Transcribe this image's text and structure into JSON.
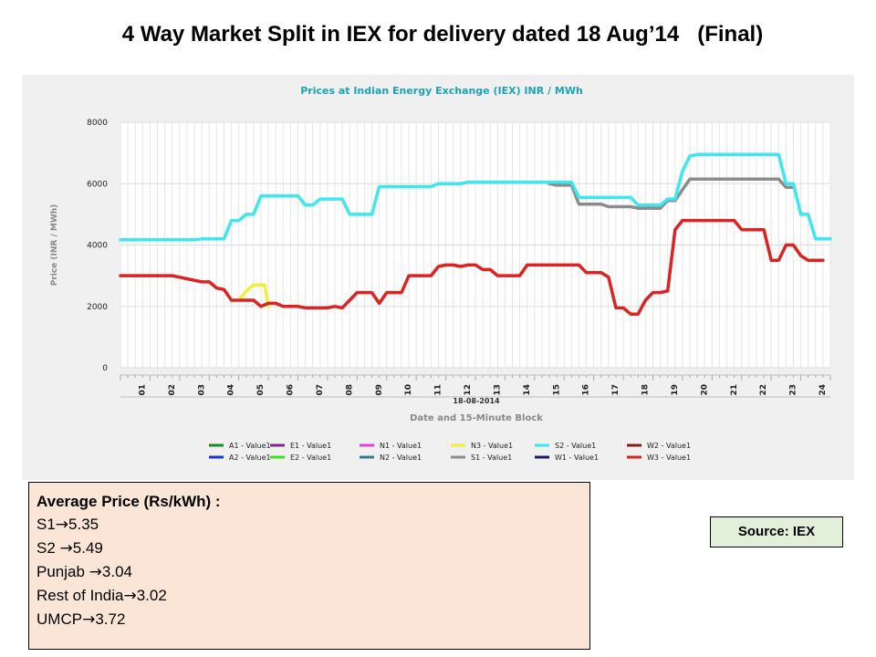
{
  "slide": {
    "title": "4 Way Market Split in IEX for delivery dated 18 Aug’14   (Final)"
  },
  "average_price": {
    "heading": "Average Price (Rs/kWh) :",
    "arrow": "→",
    "items": [
      {
        "label": "S1",
        "value": "5.35"
      },
      {
        "label": "S2 ",
        "value": "5.49"
      },
      {
        "label": "Punjab ",
        "value": "3.04"
      },
      {
        "label": "Rest of  India",
        "value": "3.02"
      },
      {
        "label": "UMCP",
        "value": "3.72"
      }
    ]
  },
  "source": {
    "label": "Source: IEX"
  },
  "chart_data": {
    "type": "line",
    "title": "Prices at Indian Energy Exchange (IEX) INR / MWh",
    "xlabel": "Date and 15-Minute Block",
    "ylabel": "Price (INR / MWh)",
    "date_label": "18-08-2014",
    "ylim": [
      0,
      8000
    ],
    "yticks": [
      0,
      2000,
      4000,
      6000,
      8000
    ],
    "xlim": [
      0,
      96
    ],
    "xticks": [
      "01",
      "02",
      "03",
      "04",
      "05",
      "06",
      "07",
      "08",
      "09",
      "10",
      "11",
      "12",
      "13",
      "14",
      "15",
      "16",
      "17",
      "18",
      "19",
      "20",
      "21",
      "22",
      "23",
      "24"
    ],
    "grid": true,
    "legend_position": "bottom",
    "colors": {
      "title": "#1aa3b8",
      "axis_label": "#888888",
      "tick_label": "#222222",
      "grid": "#e6e6e6",
      "plot_bg": "#ffffff",
      "panel_bg": "#f0f0f0"
    },
    "legend": [
      {
        "name": "A1 - Value1",
        "color": "#1a8a2e"
      },
      {
        "name": "E1 - Value1",
        "color": "#7b2c8c"
      },
      {
        "name": "N1 - Value1",
        "color": "#e040e0"
      },
      {
        "name": "N3 - Value1",
        "color": "#f2ee3c"
      },
      {
        "name": "S2 - Value1",
        "color": "#3ee6f0"
      },
      {
        "name": "W2 - Value1",
        "color": "#8b1a1a"
      },
      {
        "name": "A2 - Value1",
        "color": "#2233cc"
      },
      {
        "name": "E2 - Value1",
        "color": "#44dd22"
      },
      {
        "name": "N2 - Value1",
        "color": "#2f7f86"
      },
      {
        "name": "S1 - Value1",
        "color": "#8c8c8c"
      },
      {
        "name": "W1 - Value1",
        "color": "#1a1a66"
      },
      {
        "name": "W3 - Value1",
        "color": "#dd2222"
      }
    ],
    "series": [
      {
        "name": "N3 - Value1",
        "color": "#f2ee3c",
        "points": [
          [
            16,
            2200
          ],
          [
            17,
            2500
          ],
          [
            18,
            2700
          ],
          [
            19,
            2700
          ],
          [
            19.5,
            2700
          ],
          [
            20,
            2000
          ]
        ]
      },
      {
        "name": "S1 - Value1",
        "color": "#8c8c8c",
        "points": [
          [
            58,
            6000
          ],
          [
            59,
            5950
          ],
          [
            60,
            5950
          ],
          [
            61,
            5950
          ],
          [
            62,
            5330
          ],
          [
            63,
            5330
          ],
          [
            64,
            5330
          ],
          [
            65,
            5330
          ],
          [
            66,
            5250
          ],
          [
            67,
            5250
          ],
          [
            68,
            5250
          ],
          [
            69,
            5250
          ],
          [
            70,
            5200
          ],
          [
            71,
            5200
          ],
          [
            72,
            5200
          ],
          [
            73,
            5200
          ],
          [
            74,
            5450
          ],
          [
            75,
            5450
          ],
          [
            76,
            5800
          ],
          [
            77,
            6150
          ],
          [
            78,
            6150
          ],
          [
            79,
            6150
          ],
          [
            80,
            6150
          ],
          [
            81,
            6150
          ],
          [
            82,
            6150
          ],
          [
            83,
            6150
          ],
          [
            84,
            6150
          ],
          [
            85,
            6150
          ],
          [
            86,
            6150
          ],
          [
            87,
            6150
          ],
          [
            88,
            6150
          ],
          [
            89,
            6150
          ],
          [
            90,
            5880
          ],
          [
            91,
            5880
          ]
        ]
      },
      {
        "name": "S2 - Value1",
        "color": "#3ee6f0",
        "points": [
          [
            0,
            4170
          ],
          [
            1,
            4170
          ],
          [
            2,
            4170
          ],
          [
            3,
            4170
          ],
          [
            4,
            4170
          ],
          [
            5,
            4170
          ],
          [
            6,
            4170
          ],
          [
            7,
            4170
          ],
          [
            8,
            4170
          ],
          [
            9,
            4170
          ],
          [
            10,
            4170
          ],
          [
            11,
            4200
          ],
          [
            12,
            4200
          ],
          [
            13,
            4200
          ],
          [
            14,
            4200
          ],
          [
            15,
            4800
          ],
          [
            16,
            4800
          ],
          [
            17,
            5000
          ],
          [
            18,
            5000
          ],
          [
            19,
            5600
          ],
          [
            20,
            5600
          ],
          [
            21,
            5600
          ],
          [
            22,
            5600
          ],
          [
            23,
            5600
          ],
          [
            24,
            5600
          ],
          [
            25,
            5300
          ],
          [
            26,
            5300
          ],
          [
            27,
            5500
          ],
          [
            28,
            5500
          ],
          [
            29,
            5500
          ],
          [
            30,
            5500
          ],
          [
            31,
            5000
          ],
          [
            32,
            5000
          ],
          [
            33,
            5000
          ],
          [
            34,
            5000
          ],
          [
            35,
            5900
          ],
          [
            36,
            5900
          ],
          [
            37,
            5900
          ],
          [
            38,
            5900
          ],
          [
            39,
            5900
          ],
          [
            40,
            5900
          ],
          [
            41,
            5900
          ],
          [
            42,
            5900
          ],
          [
            43,
            6000
          ],
          [
            44,
            6000
          ],
          [
            45,
            6000
          ],
          [
            46,
            6000
          ],
          [
            47,
            6050
          ],
          [
            48,
            6050
          ],
          [
            49,
            6050
          ],
          [
            50,
            6050
          ],
          [
            51,
            6050
          ],
          [
            52,
            6050
          ],
          [
            53,
            6050
          ],
          [
            54,
            6050
          ],
          [
            55,
            6050
          ],
          [
            56,
            6050
          ],
          [
            57,
            6050
          ],
          [
            58,
            6050
          ],
          [
            59,
            6050
          ],
          [
            60,
            6050
          ],
          [
            61,
            6050
          ],
          [
            62,
            5550
          ],
          [
            63,
            5550
          ],
          [
            64,
            5550
          ],
          [
            65,
            5550
          ],
          [
            66,
            5550
          ],
          [
            67,
            5550
          ],
          [
            68,
            5550
          ],
          [
            69,
            5550
          ],
          [
            70,
            5300
          ],
          [
            71,
            5300
          ],
          [
            72,
            5300
          ],
          [
            73,
            5300
          ],
          [
            74,
            5500
          ],
          [
            75,
            5500
          ],
          [
            76,
            6400
          ],
          [
            77,
            6900
          ],
          [
            78,
            6950
          ],
          [
            79,
            6950
          ],
          [
            80,
            6950
          ],
          [
            81,
            6950
          ],
          [
            82,
            6950
          ],
          [
            83,
            6950
          ],
          [
            84,
            6950
          ],
          [
            85,
            6950
          ],
          [
            86,
            6950
          ],
          [
            87,
            6950
          ],
          [
            88,
            6950
          ],
          [
            89,
            6950
          ],
          [
            90,
            6000
          ],
          [
            91,
            6000
          ],
          [
            92,
            5000
          ],
          [
            93,
            5000
          ],
          [
            94,
            4200
          ],
          [
            95,
            4200
          ],
          [
            96,
            4200
          ]
        ]
      },
      {
        "name": "W3 - Value1",
        "color": "#dd2222",
        "points": [
          [
            0,
            3000
          ],
          [
            1,
            3000
          ],
          [
            2,
            3000
          ],
          [
            3,
            3000
          ],
          [
            4,
            3000
          ],
          [
            5,
            3000
          ],
          [
            6,
            3000
          ],
          [
            7,
            3000
          ],
          [
            8,
            2950
          ],
          [
            9,
            2900
          ],
          [
            10,
            2850
          ],
          [
            11,
            2800
          ],
          [
            12,
            2800
          ],
          [
            13,
            2600
          ],
          [
            14,
            2550
          ],
          [
            15,
            2200
          ],
          [
            16,
            2200
          ],
          [
            17,
            2200
          ],
          [
            18,
            2200
          ],
          [
            19,
            2000
          ],
          [
            20,
            2100
          ],
          [
            21,
            2100
          ],
          [
            22,
            2000
          ],
          [
            23,
            2000
          ],
          [
            24,
            2000
          ],
          [
            25,
            1950
          ],
          [
            26,
            1950
          ],
          [
            27,
            1950
          ],
          [
            28,
            1950
          ],
          [
            29,
            2000
          ],
          [
            30,
            1950
          ],
          [
            31,
            2200
          ],
          [
            32,
            2450
          ],
          [
            33,
            2450
          ],
          [
            34,
            2450
          ],
          [
            35,
            2100
          ],
          [
            36,
            2450
          ],
          [
            37,
            2450
          ],
          [
            38,
            2450
          ],
          [
            39,
            3000
          ],
          [
            40,
            3000
          ],
          [
            41,
            3000
          ],
          [
            42,
            3000
          ],
          [
            43,
            3300
          ],
          [
            44,
            3350
          ],
          [
            45,
            3350
          ],
          [
            46,
            3300
          ],
          [
            47,
            3350
          ],
          [
            48,
            3350
          ],
          [
            49,
            3200
          ],
          [
            50,
            3200
          ],
          [
            51,
            3000
          ],
          [
            52,
            3000
          ],
          [
            53,
            3000
          ],
          [
            54,
            3000
          ],
          [
            55,
            3350
          ],
          [
            56,
            3350
          ],
          [
            57,
            3350
          ],
          [
            58,
            3350
          ],
          [
            59,
            3350
          ],
          [
            60,
            3350
          ],
          [
            61,
            3350
          ],
          [
            62,
            3350
          ],
          [
            63,
            3100
          ],
          [
            64,
            3100
          ],
          [
            65,
            3100
          ],
          [
            66,
            2950
          ],
          [
            67,
            1950
          ],
          [
            68,
            1950
          ],
          [
            69,
            1750
          ],
          [
            70,
            1750
          ],
          [
            71,
            2200
          ],
          [
            72,
            2450
          ],
          [
            73,
            2450
          ],
          [
            74,
            2500
          ],
          [
            75,
            4500
          ],
          [
            76,
            4800
          ],
          [
            77,
            4800
          ],
          [
            78,
            4800
          ],
          [
            79,
            4800
          ],
          [
            80,
            4800
          ],
          [
            81,
            4800
          ],
          [
            82,
            4800
          ],
          [
            83,
            4800
          ],
          [
            84,
            4500
          ],
          [
            85,
            4500
          ],
          [
            86,
            4500
          ],
          [
            87,
            4500
          ],
          [
            88,
            3500
          ],
          [
            89,
            3500
          ],
          [
            90,
            4000
          ],
          [
            91,
            4000
          ],
          [
            92,
            3650
          ],
          [
            93,
            3500
          ],
          [
            94,
            3500
          ],
          [
            95,
            3500
          ]
        ]
      }
    ]
  }
}
